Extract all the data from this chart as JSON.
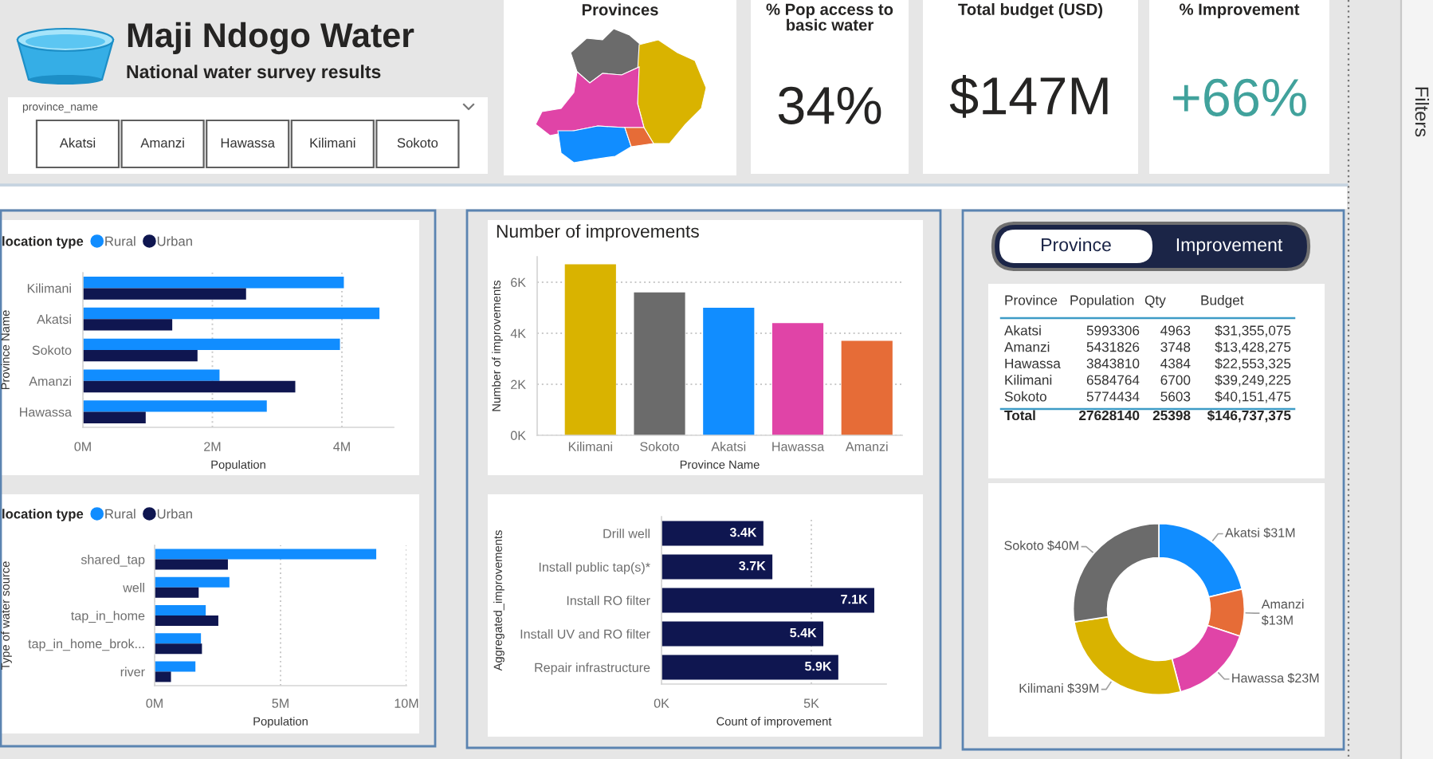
{
  "chart_data": [
    {
      "type": "other",
      "title": "Maji Ndogo Water",
      "subtitle": "National water survey results",
      "annotations": [
        "province_name"
      ],
      "categories": [
        "Akatsi",
        "Amanzi",
        "Hawassa",
        "Kilimani",
        "Sokoto"
      ]
    },
    {
      "type": "other",
      "title": "Provinces"
    },
    {
      "type": "other",
      "title": "% Pop access to basic water",
      "annotations": [
        "34%"
      ],
      "color": "#252423"
    },
    {
      "type": "other",
      "title": "Total budget (USD)",
      "annotations": [
        "$147M"
      ],
      "color": "#252423"
    },
    {
      "type": "other",
      "title": "% Improvement",
      "annotations": [
        "+66%"
      ],
      "color": "#41a29c"
    },
    {
      "type": "other",
      "title": "Filters"
    },
    {
      "type": "bar",
      "orientation": "horizontal",
      "legend": "top left",
      "legend_title": "location type",
      "categories": [
        "Kilimani",
        "Akatsi",
        "Sokoto",
        "Amanzi",
        "Hawassa"
      ],
      "series": [
        {
          "name": "Rural",
          "color": "#118dff",
          "values": [
            4030000,
            4580000,
            3970000,
            2110000,
            2840000
          ]
        },
        {
          "name": "Urban",
          "color": "#0f1650",
          "values": [
            2520000,
            1380000,
            1770000,
            3280000,
            970000
          ]
        }
      ],
      "xlim": [
        0,
        4800000
      ],
      "xticks": [
        {
          "value": 0,
          "label": "0M"
        },
        {
          "value": 2000000,
          "label": "2M"
        },
        {
          "value": 4000000,
          "label": "4M"
        }
      ],
      "xlabel": "Population",
      "ylabel": "Province Name",
      "grid": "x"
    },
    {
      "type": "bar",
      "orientation": "horizontal",
      "legend": "top left",
      "legend_title": "location type",
      "categories": [
        "shared_tap",
        "well",
        "tap_in_home",
        "tap_in_home_brok...",
        "river"
      ],
      "series": [
        {
          "name": "Rural",
          "color": "#118dff",
          "values": [
            8800000,
            2970000,
            2030000,
            1840000,
            1620000
          ]
        },
        {
          "name": "Urban",
          "color": "#0f1650",
          "values": [
            2910000,
            1750000,
            2530000,
            1880000,
            650000
          ]
        }
      ],
      "xlim": [
        0,
        10000000
      ],
      "xticks": [
        {
          "value": 0,
          "label": "0M"
        },
        {
          "value": 5000000,
          "label": "5M"
        },
        {
          "value": 10000000,
          "label": "10M"
        }
      ],
      "xlabel": "Population",
      "ylabel": "Type of water source",
      "grid": "x"
    },
    {
      "type": "bar",
      "title": "Number of improvements",
      "categories": [
        "Kilimani",
        "Sokoto",
        "Akatsi",
        "Hawassa",
        "Amanzi"
      ],
      "values": [
        6700,
        5600,
        5000,
        4400,
        3700
      ],
      "colors": [
        "#d9b300",
        "#6b6b6b",
        "#118dff",
        "#e044a7",
        "#e66c37"
      ],
      "ylim": [
        0,
        7000
      ],
      "yticks": [
        {
          "value": 0,
          "label": "0K"
        },
        {
          "value": 2000,
          "label": "2K"
        },
        {
          "value": 4000,
          "label": "4K"
        },
        {
          "value": 6000,
          "label": "6K"
        }
      ],
      "xlabel": "Province Name",
      "ylabel": "Number of improvements",
      "grid": "y"
    },
    {
      "type": "bar",
      "orientation": "horizontal",
      "categories": [
        "Drill well",
        "Install public tap(s)*",
        "Install RO filter",
        "Install UV and RO filter",
        "Repair infrastructure"
      ],
      "values": [
        3400,
        3700,
        7100,
        5400,
        5900
      ],
      "value_labels": [
        "3.4K",
        "3.7K",
        "7.1K",
        "5.4K",
        "5.9K"
      ],
      "color": "#0f1650",
      "xlim": [
        0,
        7500
      ],
      "xticks": [
        {
          "value": 0,
          "label": "0K"
        },
        {
          "value": 5000,
          "label": "5K"
        }
      ],
      "xlabel": "Count of improvement",
      "ylabel": "Aggregated_improvements",
      "grid": "x"
    },
    {
      "type": "other",
      "annotations": [
        "Province",
        "Improvement",
        "Total"
      ],
      "ylabel": "Province",
      "categories": [
        "Akatsi",
        "Amanzi",
        "Hawassa",
        "Kilimani",
        "Sokoto"
      ],
      "series": [
        {
          "name": "Population",
          "values": [
            5993306,
            5431826,
            3843810,
            6584764,
            5774434
          ]
        },
        {
          "name": "Qty",
          "values": [
            4963,
            3748,
            4384,
            6700,
            5603
          ]
        },
        {
          "name": "Budget",
          "values": [
            31355075,
            13428275,
            22553325,
            39249225,
            40151475
          ],
          "value_labels": [
            "$31,355,075",
            "$13,428,275",
            "$22,553,325",
            "$39,249,225",
            "$40,151,475"
          ]
        }
      ],
      "totals": [
        "27628140",
        "25398",
        "$146,737,375"
      ],
      "data_labels": true
    },
    {
      "type": "donut",
      "categories": [
        "Akatsi",
        "Amanzi",
        "Hawassa",
        "Kilimani",
        "Sokoto"
      ],
      "values": [
        31,
        13,
        23,
        39,
        40
      ],
      "value_labels": [
        "$31M",
        "$13M",
        "$23M",
        "$39M",
        "$40M"
      ],
      "colors": [
        "#118dff",
        "#e66c37",
        "#e044a7",
        "#d9b300",
        "#6b6b6b"
      ]
    }
  ]
}
